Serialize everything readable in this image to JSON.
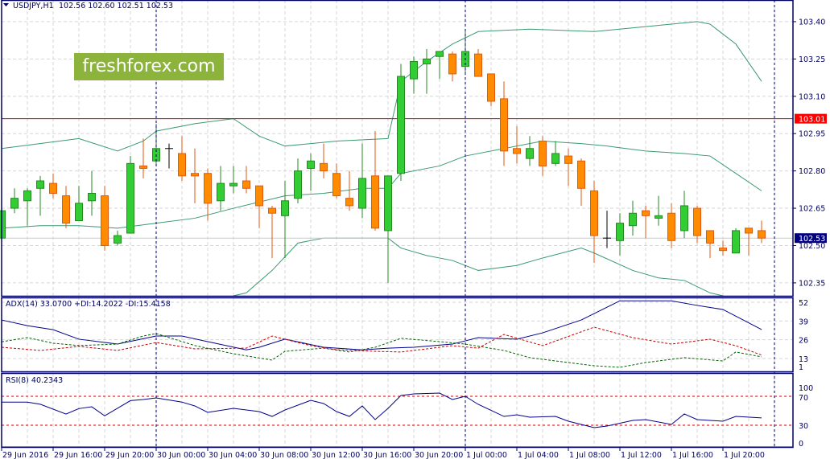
{
  "chart_data": [
    {
      "type": "candlestick",
      "title": "USDJPY,H1",
      "ohlc_header": "102.56 102.60 102.51 102.53",
      "ylim": [
        102.298,
        103.487
      ],
      "y_tick_labels": [
        "103.40",
        "103.25",
        "103.10",
        "102.95",
        "102.80",
        "102.65",
        "102.50",
        "102.35"
      ],
      "y_ticks": [
        103.4,
        103.25,
        103.1,
        102.95,
        102.8,
        102.65,
        102.5,
        102.35
      ],
      "x_tick_labels": [
        "29 Jun 2016",
        "29 Jun 16:00",
        "29 Jun 20:00",
        "30 Jun 00:00",
        "30 Jun 04:00",
        "30 Jun 08:00",
        "30 Jun 12:00",
        "30 Jun 16:00",
        "30 Jun 20:00",
        "1 Jul 00:00",
        "1 Jul 04:00",
        "1 Jul 08:00",
        "1 Jul 12:00",
        "1 Jul 16:00",
        "1 Jul 20:00"
      ],
      "x_tick_candle_index": [
        0,
        4,
        8,
        12,
        16,
        20,
        24,
        28,
        32,
        36,
        40,
        44,
        48,
        52,
        56
      ],
      "grid": true,
      "colors": {
        "bull": "#32cd32",
        "bear": "#ff8c00",
        "doji": "#000000",
        "bands": "#3a9a70",
        "resistance": "#d00000",
        "current": "#000080"
      },
      "candles_ohlc": [
        [
          102.53,
          102.68,
          102.51,
          102.64
        ],
        [
          102.65,
          102.73,
          102.63,
          102.69
        ],
        [
          102.68,
          102.73,
          102.58,
          102.72
        ],
        [
          102.73,
          102.78,
          102.62,
          102.76
        ],
        [
          102.75,
          102.79,
          102.69,
          102.71
        ],
        [
          102.7,
          102.74,
          102.57,
          102.59
        ],
        [
          102.6,
          102.74,
          102.6,
          102.67
        ],
        [
          102.68,
          102.8,
          102.62,
          102.71
        ],
        [
          102.7,
          102.74,
          102.48,
          102.5
        ],
        [
          102.51,
          102.56,
          102.5,
          102.54
        ],
        [
          102.55,
          102.86,
          102.55,
          102.83
        ],
        [
          102.82,
          102.93,
          102.77,
          102.81
        ],
        [
          102.84,
          102.99,
          102.82,
          102.89
        ],
        [
          102.89,
          102.91,
          102.81,
          102.89
        ],
        [
          102.87,
          102.94,
          102.76,
          102.78
        ],
        [
          102.79,
          102.89,
          102.67,
          102.78
        ],
        [
          102.79,
          102.81,
          102.6,
          102.67
        ],
        [
          102.68,
          102.82,
          102.64,
          102.75
        ],
        [
          102.74,
          102.82,
          102.71,
          102.75
        ],
        [
          102.76,
          102.82,
          102.71,
          102.73
        ],
        [
          102.74,
          102.74,
          102.57,
          102.66
        ],
        [
          102.65,
          102.66,
          102.45,
          102.63
        ],
        [
          102.62,
          102.76,
          102.45,
          102.68
        ],
        [
          102.69,
          102.85,
          102.67,
          102.8
        ],
        [
          102.81,
          102.87,
          102.72,
          102.84
        ],
        [
          102.83,
          102.91,
          102.77,
          102.8
        ],
        [
          102.79,
          102.83,
          102.69,
          102.7
        ],
        [
          102.69,
          102.8,
          102.64,
          102.66
        ],
        [
          102.65,
          102.91,
          102.61,
          102.77
        ],
        [
          102.78,
          102.96,
          102.56,
          102.57
        ],
        [
          102.56,
          102.78,
          102.35,
          102.78
        ],
        [
          102.79,
          103.23,
          102.76,
          103.18
        ],
        [
          103.17,
          103.26,
          103.11,
          103.24
        ],
        [
          103.23,
          103.29,
          103.11,
          103.25
        ],
        [
          103.26,
          103.28,
          103.17,
          103.28
        ],
        [
          103.27,
          103.28,
          103.16,
          103.19
        ],
        [
          103.22,
          103.37,
          103.19,
          103.28
        ],
        [
          103.27,
          103.29,
          103.18,
          103.18
        ],
        [
          103.19,
          103.19,
          103.06,
          103.08
        ],
        [
          103.09,
          103.16,
          102.82,
          102.88
        ],
        [
          102.89,
          102.98,
          102.83,
          102.87
        ],
        [
          102.85,
          102.94,
          102.82,
          102.89
        ],
        [
          102.92,
          102.94,
          102.78,
          102.82
        ],
        [
          102.83,
          102.92,
          102.82,
          102.87
        ],
        [
          102.86,
          102.89,
          102.74,
          102.83
        ],
        [
          102.84,
          102.85,
          102.66,
          102.73
        ],
        [
          102.72,
          102.76,
          102.43,
          102.54
        ],
        [
          102.53,
          102.64,
          102.49,
          102.53
        ],
        [
          102.52,
          102.63,
          102.46,
          102.59
        ],
        [
          102.58,
          102.68,
          102.54,
          102.63
        ],
        [
          102.64,
          102.66,
          102.53,
          102.62
        ],
        [
          102.61,
          102.7,
          102.58,
          102.62
        ],
        [
          102.63,
          102.67,
          102.49,
          102.52
        ],
        [
          102.56,
          102.72,
          102.53,
          102.66
        ],
        [
          102.65,
          102.66,
          102.51,
          102.54
        ],
        [
          102.56,
          102.56,
          102.45,
          102.51
        ],
        [
          102.49,
          102.52,
          102.46,
          102.48
        ],
        [
          102.47,
          102.57,
          102.47,
          102.56
        ],
        [
          102.57,
          102.57,
          102.46,
          102.55
        ],
        [
          102.56,
          102.6,
          102.51,
          102.53
        ]
      ],
      "bollinger": {
        "upper": [
          [
            0,
            102.89
          ],
          [
            6,
            102.93
          ],
          [
            9,
            102.88
          ],
          [
            11,
            102.92
          ],
          [
            12,
            102.96
          ],
          [
            15,
            102.99
          ],
          [
            18,
            103.01
          ],
          [
            20,
            102.94
          ],
          [
            22,
            102.9
          ],
          [
            26,
            102.92
          ],
          [
            30,
            102.93
          ],
          [
            31,
            103.16
          ],
          [
            33,
            103.24
          ],
          [
            35,
            103.31
          ],
          [
            37,
            103.36
          ],
          [
            41,
            103.37
          ],
          [
            46,
            103.36
          ],
          [
            50,
            103.38
          ],
          [
            54,
            103.4
          ],
          [
            55,
            103.39
          ],
          [
            57,
            103.31
          ],
          [
            59,
            103.16
          ]
        ],
        "middle": [
          [
            0,
            102.57
          ],
          [
            3,
            102.58
          ],
          [
            6,
            102.58
          ],
          [
            9,
            102.57
          ],
          [
            12,
            102.59
          ],
          [
            15,
            102.61
          ],
          [
            18,
            102.65
          ],
          [
            22,
            102.7
          ],
          [
            25,
            102.71
          ],
          [
            28,
            102.73
          ],
          [
            30,
            102.73
          ],
          [
            31,
            102.79
          ],
          [
            34,
            102.82
          ],
          [
            36,
            102.86
          ],
          [
            39,
            102.89
          ],
          [
            42,
            102.92
          ],
          [
            45,
            102.91
          ],
          [
            47,
            102.9
          ],
          [
            50,
            102.88
          ],
          [
            53,
            102.87
          ],
          [
            55,
            102.86
          ],
          [
            57,
            102.79
          ],
          [
            59,
            102.72
          ]
        ],
        "lower": [
          [
            18,
            102.27
          ],
          [
            19,
            102.31
          ],
          [
            21,
            102.4
          ],
          [
            23,
            102.51
          ],
          [
            25,
            102.53
          ],
          [
            30,
            102.53
          ],
          [
            31,
            102.49
          ],
          [
            33,
            102.46
          ],
          [
            35,
            102.44
          ],
          [
            37,
            102.4
          ],
          [
            40,
            102.42
          ],
          [
            42,
            102.45
          ],
          [
            45,
            102.49
          ],
          [
            46,
            102.47
          ],
          [
            49,
            102.4
          ],
          [
            51,
            102.37
          ],
          [
            53,
            102.36
          ],
          [
            55,
            102.31
          ],
          [
            56,
            102.28
          ]
        ]
      },
      "resistance_level": "103.01",
      "current_price": "102.53"
    },
    {
      "type": "line",
      "title": "ADX(14) 33.0700 +DI:14.2022 -DI:15.4158",
      "y_tick_labels": [
        "52",
        "39",
        "26",
        "13",
        "1"
      ],
      "y_ticks": [
        52,
        39,
        26,
        13,
        1
      ],
      "series": [
        {
          "name": "ADX",
          "color": "#00008b",
          "style": "solid",
          "points": [
            [
              0,
              39.7
            ],
            [
              2,
              35.8
            ],
            [
              4,
              33
            ],
            [
              6,
              26.4
            ],
            [
              9,
              23
            ],
            [
              12,
              28.6
            ],
            [
              14,
              28.6
            ],
            [
              16,
              24.7
            ],
            [
              19,
              19
            ],
            [
              20,
              20.8
            ],
            [
              22,
              26.4
            ],
            [
              25,
              20.8
            ],
            [
              28,
              19
            ],
            [
              30,
              20.2
            ],
            [
              32,
              20.8
            ],
            [
              35,
              23
            ],
            [
              37,
              27.5
            ],
            [
              40,
              26.4
            ],
            [
              42,
              30.8
            ],
            [
              45,
              39.7
            ],
            [
              48,
              53
            ],
            [
              50,
              53
            ],
            [
              52,
              53
            ],
            [
              54,
              49.8
            ],
            [
              56,
              47
            ],
            [
              59,
              33.1
            ]
          ]
        },
        {
          "name": "+DI",
          "color": "#006400",
          "style": "dashed",
          "points": [
            [
              0,
              24.6
            ],
            [
              2,
              27.5
            ],
            [
              4,
              23.6
            ],
            [
              6,
              22
            ],
            [
              9,
              23
            ],
            [
              11,
              28.6
            ],
            [
              12,
              30.3
            ],
            [
              15,
              22
            ],
            [
              18,
              16.3
            ],
            [
              21,
              11.9
            ],
            [
              22,
              18
            ],
            [
              25,
              20.2
            ],
            [
              27,
              17.5
            ],
            [
              29,
              20.8
            ],
            [
              31,
              27
            ],
            [
              34,
              24.7
            ],
            [
              36,
              23
            ],
            [
              39,
              18.6
            ],
            [
              41,
              13.6
            ],
            [
              44,
              10.2
            ],
            [
              46,
              8
            ],
            [
              48,
              6.9
            ],
            [
              50,
              10.2
            ],
            [
              53,
              13.6
            ],
            [
              56,
              11.3
            ],
            [
              57,
              17.5
            ],
            [
              59,
              14.2
            ]
          ]
        },
        {
          "name": "-DI",
          "color": "#cc0000",
          "style": "dashed",
          "points": [
            [
              0,
              20.8
            ],
            [
              3,
              18.6
            ],
            [
              6,
              21.4
            ],
            [
              9,
              18.6
            ],
            [
              12,
              24.1
            ],
            [
              15,
              19.7
            ],
            [
              19,
              20.2
            ],
            [
              21,
              28.6
            ],
            [
              24,
              21.9
            ],
            [
              26,
              19.1
            ],
            [
              29,
              18
            ],
            [
              31,
              17.5
            ],
            [
              35,
              21.9
            ],
            [
              37,
              20.2
            ],
            [
              39,
              29.7
            ],
            [
              42,
              21.9
            ],
            [
              46,
              34.7
            ],
            [
              49,
              27.5
            ],
            [
              52,
              23
            ],
            [
              55,
              26.4
            ],
            [
              57,
              21.9
            ],
            [
              59,
              15.4
            ]
          ]
        }
      ]
    },
    {
      "type": "line",
      "title": "RSI(8) 40.2343",
      "y_tick_labels": [
        "100",
        "70",
        "30",
        "0"
      ],
      "y_ticks": [
        100,
        70,
        30,
        0
      ],
      "levels": [
        70,
        30
      ],
      "series": [
        {
          "name": "RSI",
          "color": "#00008b",
          "points": [
            [
              0,
              62
            ],
            [
              2,
              62
            ],
            [
              3,
              59
            ],
            [
              5,
              45.5
            ],
            [
              6,
              53
            ],
            [
              7,
              55.5
            ],
            [
              8,
              43
            ],
            [
              10,
              64
            ],
            [
              11,
              65.5
            ],
            [
              12,
              67.8
            ],
            [
              14,
              62
            ],
            [
              15,
              56.7
            ],
            [
              16,
              47.8
            ],
            [
              18,
              53.3
            ],
            [
              20,
              48.9
            ],
            [
              21,
              42.2
            ],
            [
              22,
              51.1
            ],
            [
              24,
              64.4
            ],
            [
              25,
              60
            ],
            [
              26,
              48.9
            ],
            [
              27,
              42.2
            ],
            [
              28,
              56.7
            ],
            [
              29,
              37.8
            ],
            [
              30,
              53.3
            ],
            [
              31,
              71.1
            ],
            [
              32,
              73.3
            ],
            [
              34,
              74.4
            ],
            [
              35,
              65.6
            ],
            [
              36,
              70
            ],
            [
              37,
              58.9
            ],
            [
              39,
              42.2
            ],
            [
              40,
              44.4
            ],
            [
              41,
              41.1
            ],
            [
              43,
              42.2
            ],
            [
              44,
              35.6
            ],
            [
              46,
              26.7
            ],
            [
              47,
              28.9
            ],
            [
              49,
              36.7
            ],
            [
              50,
              37.8
            ],
            [
              52,
              31.1
            ],
            [
              53,
              45.6
            ],
            [
              54,
              37.8
            ],
            [
              56,
              35.6
            ],
            [
              57,
              42.2
            ],
            [
              59,
              40.2
            ]
          ]
        }
      ]
    }
  ],
  "watermark": "freshforex.com"
}
